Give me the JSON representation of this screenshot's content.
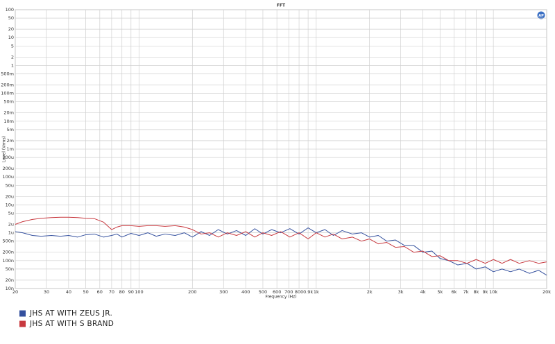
{
  "chart_data": {
    "type": "line",
    "title": "FFT",
    "x_label": "Frequency (Hz)",
    "y_label": "Level (Vrms)",
    "log_x": true,
    "log_y": true,
    "grid": true,
    "legend": "bottom-left",
    "xlim": [
      20,
      20000
    ],
    "ylim": [
      1e-08,
      100
    ],
    "xticks": [
      20,
      30,
      40,
      50,
      60,
      70,
      80,
      90,
      100,
      200,
      300,
      400,
      500,
      600,
      700,
      800,
      {
        "value": 900,
        "label": "0.9k"
      },
      {
        "value": 1000,
        "label": "1k"
      },
      {
        "value": 2000,
        "label": "2k"
      },
      {
        "value": 3000,
        "label": "3k"
      },
      {
        "value": 4000,
        "label": "4k"
      },
      {
        "value": 5000,
        "label": "5k"
      },
      {
        "value": 6000,
        "label": "6k"
      },
      {
        "value": 7000,
        "label": "7k"
      },
      {
        "value": 8000,
        "label": "8k"
      },
      {
        "value": 9000,
        "label": "9k"
      },
      {
        "value": 10000,
        "label": "10k"
      },
      {
        "value": 20000,
        "label": "20k"
      }
    ],
    "yticks": [
      100,
      50,
      20,
      10,
      5,
      2,
      1,
      {
        "value": 0.5,
        "label": "500m"
      },
      {
        "value": 0.2,
        "label": "200m"
      },
      {
        "value": 0.1,
        "label": "100m"
      },
      {
        "value": 0.05,
        "label": "50m"
      },
      {
        "value": 0.02,
        "label": "20m"
      },
      {
        "value": 0.01,
        "label": "10m"
      },
      {
        "value": 0.005,
        "label": "5m"
      },
      {
        "value": 0.002,
        "label": "2m"
      },
      {
        "value": 0.001,
        "label": "1m"
      },
      {
        "value": 0.0005,
        "label": "500u"
      },
      {
        "value": 0.0002,
        "label": "200u"
      },
      {
        "value": 0.0001,
        "label": "100u"
      },
      {
        "value": 5e-05,
        "label": "50u"
      },
      {
        "value": 2e-05,
        "label": "20u"
      },
      {
        "value": 1e-05,
        "label": "10u"
      },
      {
        "value": 5e-06,
        "label": "5u"
      },
      {
        "value": 2e-06,
        "label": "2u"
      },
      {
        "value": 1e-06,
        "label": "1u"
      },
      {
        "value": 5e-07,
        "label": "500n"
      },
      {
        "value": 2e-07,
        "label": "200n"
      },
      {
        "value": 1e-07,
        "label": "100n"
      },
      {
        "value": 5e-08,
        "label": "50n"
      },
      {
        "value": 2e-08,
        "label": "20n"
      },
      {
        "value": 1e-08,
        "label": "10n"
      }
    ],
    "x": [
      20,
      22,
      25,
      28,
      32,
      36,
      40,
      45,
      50,
      56,
      63,
      70,
      75,
      80,
      90,
      100,
      112,
      125,
      140,
      160,
      180,
      200,
      224,
      250,
      280,
      315,
      355,
      400,
      450,
      500,
      560,
      630,
      710,
      800,
      900,
      1000,
      1120,
      1250,
      1400,
      1600,
      1800,
      2000,
      2240,
      2500,
      2800,
      3150,
      3550,
      4000,
      4500,
      5000,
      5600,
      6300,
      7100,
      8000,
      9000,
      10000,
      11200,
      12500,
      14000,
      16000,
      18000,
      20000
    ],
    "series": [
      {
        "name": "JHS AT WITH ZEUS JR.",
        "color": "#34509e",
        "values": [
          1.1e-06,
          1e-06,
          8e-07,
          7.5e-07,
          8e-07,
          7.5e-07,
          8e-07,
          7e-07,
          8.5e-07,
          9e-07,
          7e-07,
          8e-07,
          9e-07,
          7e-07,
          9.5e-07,
          8e-07,
          1e-06,
          7.5e-07,
          9e-07,
          8e-07,
          1e-06,
          7e-07,
          1.1e-06,
          8e-07,
          1.3e-06,
          9e-07,
          1.2e-06,
          8e-07,
          1.4e-06,
          9e-07,
          1.3e-06,
          1e-06,
          1.4e-06,
          9e-07,
          1.5e-06,
          1e-06,
          1.3e-06,
          8e-07,
          1.2e-06,
          9e-07,
          1e-06,
          7e-07,
          8e-07,
          5e-07,
          5.5e-07,
          3.5e-07,
          3.5e-07,
          2e-07,
          2.2e-07,
          1.2e-07,
          1e-07,
          7e-08,
          8e-08,
          5e-08,
          6e-08,
          4e-08,
          5e-08,
          4e-08,
          5e-08,
          3.5e-08,
          4.5e-08,
          3e-08
        ]
      },
      {
        "name": "JHS AT WITH S BRAND",
        "color": "#c8393f",
        "values": [
          2e-06,
          2.5e-06,
          3e-06,
          3.3e-06,
          3.5e-06,
          3.6e-06,
          3.6e-06,
          3.5e-06,
          3.3e-06,
          3.2e-06,
          2.4e-06,
          1.3e-06,
          1.6e-06,
          1.8e-06,
          1.8e-06,
          1.7e-06,
          1.8e-06,
          1.8e-06,
          1.7e-06,
          1.8e-06,
          1.6e-06,
          1.3e-06,
          9e-07,
          1e-06,
          7e-07,
          1e-06,
          8e-07,
          1.1e-06,
          7e-07,
          1e-06,
          8e-07,
          1.1e-06,
          7e-07,
          1e-06,
          6e-07,
          1e-06,
          7e-07,
          9e-07,
          6e-07,
          7e-07,
          5e-07,
          6e-07,
          4e-07,
          4.5e-07,
          3e-07,
          3.2e-07,
          2e-07,
          2.2e-07,
          1.4e-07,
          1.5e-07,
          1e-07,
          1e-07,
          8e-08,
          1.1e-07,
          8e-08,
          1.1e-07,
          8e-08,
          1.1e-07,
          8e-08,
          1e-07,
          8e-08,
          9e-08
        ]
      }
    ]
  }
}
